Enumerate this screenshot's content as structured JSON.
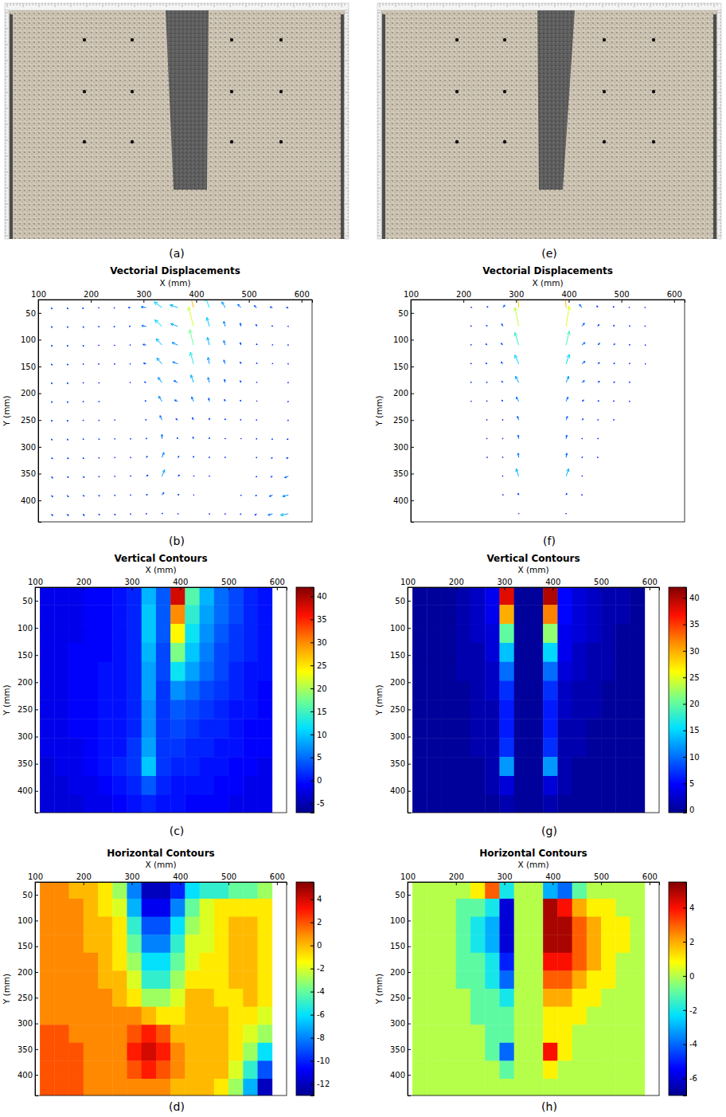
{
  "chart_data": [
    {
      "type": "displacement_field",
      "x_label": "X (mm)",
      "y_label": "Y (mm)",
      "xlim": [
        100,
        620
      ],
      "ylim": [
        25,
        440
      ],
      "xticks": [
        100,
        200,
        300,
        400,
        500,
        600
      ],
      "yticks": [
        50,
        100,
        150,
        200,
        250,
        300,
        350,
        400
      ],
      "x": [
        125,
        155,
        185,
        215,
        245,
        275,
        305,
        335,
        365,
        395,
        425,
        455,
        485,
        515,
        545,
        575
      ],
      "y": [
        40,
        75,
        110,
        145,
        180,
        215,
        250,
        285,
        320,
        355,
        390,
        425
      ],
      "vertical": [
        [
          -2,
          -2,
          -2,
          -1,
          -1,
          0,
          1,
          9,
          4,
          38,
          16,
          9,
          5,
          3,
          1,
          0
        ],
        [
          -2,
          -2,
          -2,
          -1,
          -1,
          0,
          1,
          10,
          4,
          30,
          14,
          8,
          5,
          3,
          1,
          0
        ],
        [
          -2,
          -2,
          -2,
          -1,
          -1,
          0,
          1,
          10,
          4,
          24,
          12,
          7,
          4,
          2,
          1,
          0
        ],
        [
          -2,
          -2,
          -1,
          -1,
          -1,
          0,
          1,
          9,
          3,
          18,
          10,
          6,
          3,
          2,
          1,
          0
        ],
        [
          -2,
          -2,
          -1,
          -1,
          0,
          0,
          1,
          8,
          3,
          12,
          8,
          5,
          3,
          1,
          0,
          0
        ],
        [
          -2,
          -2,
          -1,
          -1,
          0,
          0,
          1,
          8,
          2,
          7,
          5,
          3,
          2,
          1,
          0,
          -1
        ],
        [
          -2,
          -2,
          -1,
          -1,
          0,
          0,
          1,
          7,
          2,
          4,
          3,
          2,
          1,
          0,
          0,
          -1
        ],
        [
          -2,
          -2,
          -1,
          -1,
          0,
          0,
          1,
          7,
          2,
          3,
          2,
          1,
          1,
          0,
          -1,
          -1
        ],
        [
          -2,
          -2,
          -2,
          -1,
          0,
          0,
          2,
          8,
          2,
          2,
          1,
          1,
          0,
          0,
          -1,
          -1
        ],
        [
          -3,
          -2,
          -2,
          -1,
          0,
          1,
          2,
          10,
          2,
          1,
          1,
          0,
          0,
          -1,
          -1,
          -2
        ],
        [
          -3,
          -3,
          -2,
          -2,
          -1,
          0,
          1,
          4,
          1,
          0,
          0,
          0,
          -1,
          -1,
          -2,
          -2
        ],
        [
          -3,
          -3,
          -3,
          -2,
          -2,
          -1,
          0,
          1,
          0,
          0,
          -1,
          -1,
          -1,
          -2,
          -2,
          -2
        ]
      ],
      "horizontal": [
        [
          1,
          1,
          0,
          0,
          -1,
          -3,
          -8,
          -12,
          -12,
          -10,
          -6,
          -5,
          -5,
          -4,
          -4,
          -3
        ],
        [
          1,
          1,
          1,
          0,
          -1,
          -2,
          -7,
          -11,
          -11,
          -8,
          -4,
          -2,
          -1,
          -1,
          -1,
          -1
        ],
        [
          1,
          1,
          1,
          0,
          0,
          -1,
          -5,
          -9,
          -9,
          -6,
          -3,
          -2,
          -1,
          0,
          0,
          -1
        ],
        [
          1,
          1,
          1,
          0,
          0,
          -1,
          -4,
          -8,
          -8,
          -5,
          -2,
          -2,
          -1,
          0,
          0,
          -1
        ],
        [
          1,
          1,
          1,
          1,
          0,
          -1,
          -3,
          -6,
          -6,
          -4,
          -2,
          -1,
          -1,
          0,
          0,
          -1
        ],
        [
          1,
          1,
          1,
          1,
          0,
          0,
          -2,
          -5,
          -5,
          -3,
          -1,
          -1,
          -1,
          0,
          0,
          -1
        ],
        [
          1,
          1,
          1,
          1,
          1,
          0,
          -1,
          -3,
          -3,
          -2,
          0,
          0,
          -1,
          -1,
          0,
          -1
        ],
        [
          1,
          1,
          1,
          1,
          1,
          1,
          1,
          0,
          -1,
          -1,
          0,
          0,
          0,
          -1,
          -1,
          -2
        ],
        [
          2,
          2,
          1,
          1,
          1,
          1,
          2,
          3,
          2,
          0,
          0,
          0,
          0,
          -1,
          -2,
          -3
        ],
        [
          2,
          2,
          2,
          1,
          1,
          1,
          3,
          4,
          3,
          1,
          0,
          0,
          0,
          -1,
          -3,
          -6
        ],
        [
          2,
          2,
          2,
          1,
          1,
          1,
          2,
          3,
          2,
          1,
          0,
          0,
          0,
          -2,
          -5,
          -9
        ],
        [
          2,
          2,
          2,
          1,
          1,
          1,
          1,
          1,
          1,
          0,
          0,
          0,
          -1,
          -3,
          -7,
          -12
        ]
      ],
      "panels": {
        "photo": {
          "label": "(a)"
        },
        "vectors": {
          "label": "(b)",
          "title": "Vectorial Displacements"
        },
        "vertical_contours": {
          "label": "(c)",
          "title": "Vertical Contours",
          "colorbar_range": [
            -7,
            42
          ],
          "colorbar_ticks": [
            -5,
            0,
            5,
            10,
            15,
            20,
            25,
            30,
            35,
            40
          ]
        },
        "horizontal_contours": {
          "label": "(d)",
          "title": "Horizontal Contours",
          "colorbar_range": [
            -13,
            5.5
          ],
          "colorbar_ticks": [
            -12,
            -10,
            -8,
            -6,
            -4,
            -2,
            0,
            2,
            4
          ]
        }
      }
    },
    {
      "type": "displacement_field",
      "x_label": "X (mm)",
      "y_label": "Y (mm)",
      "xlim": [
        100,
        620
      ],
      "ylim": [
        25,
        440
      ],
      "xticks": [
        100,
        200,
        300,
        400,
        500,
        600
      ],
      "yticks": [
        50,
        100,
        150,
        200,
        250,
        300,
        350,
        400
      ],
      "x": [
        125,
        155,
        185,
        215,
        245,
        275,
        305,
        335,
        365,
        395,
        425,
        455,
        485,
        515,
        545,
        575
      ],
      "y": [
        40,
        75,
        110,
        145,
        180,
        215,
        250,
        285,
        320,
        355,
        390,
        425
      ],
      "vertical": [
        [
          0,
          0,
          0,
          1,
          2,
          4,
          38,
          0,
          0,
          40,
          5,
          3,
          2,
          1,
          1,
          0
        ],
        [
          0,
          0,
          0,
          1,
          2,
          4,
          30,
          0,
          0,
          32,
          5,
          3,
          2,
          1,
          1,
          0
        ],
        [
          0,
          0,
          0,
          1,
          2,
          3,
          20,
          0,
          0,
          22,
          4,
          3,
          2,
          1,
          0,
          0
        ],
        [
          0,
          0,
          0,
          1,
          1,
          3,
          14,
          0,
          0,
          15,
          4,
          2,
          1,
          1,
          0,
          0
        ],
        [
          0,
          0,
          0,
          1,
          1,
          2,
          10,
          0,
          0,
          10,
          3,
          2,
          1,
          1,
          0,
          0
        ],
        [
          0,
          0,
          0,
          0,
          1,
          2,
          7,
          0,
          0,
          7,
          2,
          1,
          1,
          0,
          0,
          0
        ],
        [
          0,
          0,
          0,
          0,
          1,
          1,
          6,
          0,
          0,
          6,
          2,
          1,
          1,
          0,
          0,
          0
        ],
        [
          0,
          0,
          0,
          0,
          1,
          1,
          6,
          0,
          0,
          6,
          1,
          1,
          0,
          0,
          0,
          0
        ],
        [
          0,
          0,
          0,
          0,
          1,
          1,
          7,
          0,
          0,
          7,
          1,
          1,
          0,
          0,
          0,
          0
        ],
        [
          0,
          0,
          0,
          0,
          0,
          1,
          12,
          0,
          0,
          12,
          1,
          0,
          0,
          0,
          0,
          0
        ],
        [
          0,
          0,
          0,
          0,
          0,
          1,
          3,
          0,
          0,
          3,
          1,
          0,
          0,
          0,
          0,
          0
        ],
        [
          0,
          0,
          0,
          0,
          0,
          0,
          1,
          0,
          0,
          1,
          0,
          0,
          0,
          0,
          0,
          0
        ]
      ],
      "horizontal": [
        [
          0,
          0,
          0,
          0,
          1,
          3,
          -2,
          0,
          0,
          -3,
          -4,
          -1,
          0,
          0,
          0,
          0
        ],
        [
          0,
          0,
          0,
          -1,
          -1,
          -2,
          -6,
          0,
          0,
          5,
          4,
          2,
          1,
          1,
          0,
          0
        ],
        [
          0,
          0,
          0,
          -1,
          -2,
          -3,
          -6,
          0,
          0,
          5,
          5,
          3,
          2,
          1,
          1,
          0
        ],
        [
          0,
          0,
          0,
          -1,
          -2,
          -3,
          -6,
          0,
          0,
          5,
          5,
          3,
          2,
          1,
          1,
          0
        ],
        [
          0,
          0,
          0,
          -1,
          -1,
          -2,
          -5,
          0,
          0,
          4,
          4,
          3,
          2,
          1,
          0,
          0
        ],
        [
          0,
          0,
          0,
          -1,
          -1,
          -2,
          -4,
          0,
          0,
          3,
          3,
          2,
          1,
          1,
          0,
          0
        ],
        [
          0,
          0,
          0,
          0,
          -1,
          -1,
          -2,
          0,
          0,
          2,
          2,
          1,
          1,
          0,
          0,
          0
        ],
        [
          0,
          0,
          0,
          0,
          -1,
          -1,
          -1,
          0,
          0,
          1,
          1,
          1,
          0,
          0,
          0,
          0
        ],
        [
          0,
          0,
          0,
          0,
          0,
          -1,
          -1,
          0,
          0,
          1,
          1,
          0,
          0,
          0,
          0,
          0
        ],
        [
          0,
          0,
          0,
          0,
          0,
          -1,
          -4,
          0,
          0,
          4,
          1,
          0,
          0,
          0,
          0,
          0
        ],
        [
          0,
          0,
          0,
          0,
          0,
          0,
          -1,
          0,
          0,
          1,
          0,
          0,
          0,
          0,
          0,
          0
        ],
        [
          0,
          0,
          0,
          0,
          0,
          0,
          0,
          0,
          0,
          0,
          0,
          0,
          0,
          0,
          0,
          0
        ]
      ],
      "panels": {
        "photo": {
          "label": "(e)"
        },
        "vectors": {
          "label": "(f)",
          "title": "Vectorial Displacements"
        },
        "vertical_contours": {
          "label": "(g)",
          "title": "Vertical Contours",
          "colorbar_range": [
            -0.5,
            42
          ],
          "colorbar_ticks": [
            0,
            5,
            10,
            15,
            20,
            25,
            30,
            35,
            40
          ]
        },
        "horizontal_contours": {
          "label": "(h)",
          "title": "Horizontal Contours",
          "colorbar_range": [
            -7,
            5.5
          ],
          "colorbar_ticks": [
            -6,
            -4,
            -2,
            0,
            2,
            4
          ]
        }
      }
    }
  ]
}
